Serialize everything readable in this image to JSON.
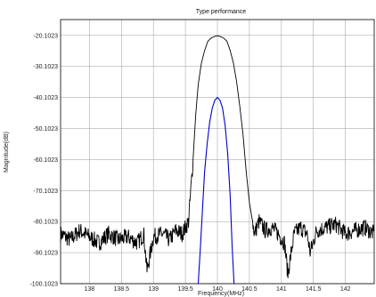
{
  "chart_data": {
    "type": "line",
    "title": "Type performance",
    "xlabel": "Frequency(MHz)",
    "ylabel": "Magnitude(dB)",
    "xlim": [
      137.55,
      142.45
    ],
    "ylim": [
      -100.1023,
      -15.0
    ],
    "x_ticks": [
      138,
      138.5,
      139,
      139.5,
      140,
      140.5,
      141,
      141.5,
      142
    ],
    "x_tick_labels": [
      "138",
      "138.5",
      "139",
      "139.5",
      "140",
      "140.5",
      "141",
      "141.5",
      "142"
    ],
    "y_ticks": [
      -100.1023,
      -90.1023,
      -80.1023,
      -70.1023,
      -60.1023,
      -50.1023,
      -40.1023,
      -30.1023,
      -20.1023
    ],
    "y_tick_labels": [
      "-100.1023",
      "-90.1023",
      "-80.1023",
      "-70.1023",
      "-60.1023",
      "-50.1023",
      "-40.1023",
      "-30.1023",
      "-20.1023"
    ],
    "grid": true,
    "series": [
      {
        "color": "#000000",
        "x": [
          137.55,
          137.7,
          137.85,
          138.0,
          138.15,
          138.3,
          138.45,
          138.6,
          138.75,
          138.85,
          138.9,
          139.0,
          139.15,
          139.25,
          139.35,
          139.45,
          139.55,
          139.62,
          139.66,
          139.7,
          139.75,
          139.8,
          139.85,
          139.9,
          139.95,
          140.0,
          140.05,
          140.1,
          140.15,
          140.2,
          140.25,
          140.3,
          140.35,
          140.4,
          140.45,
          140.5,
          140.58,
          140.65,
          140.75,
          140.85,
          140.95,
          141.05,
          141.1,
          141.2,
          141.3,
          141.4,
          141.45,
          141.55,
          141.7,
          141.85,
          142.0,
          142.15,
          142.3,
          142.45
        ],
        "y": [
          -84,
          -86,
          -83,
          -85,
          -87,
          -84,
          -86,
          -85,
          -87,
          -84,
          -96,
          -85,
          -84,
          -86,
          -83,
          -84,
          -80,
          -60,
          -46,
          -36,
          -29,
          -25,
          -22,
          -21,
          -20.5,
          -20.2,
          -20.5,
          -21,
          -22,
          -25,
          -29,
          -35,
          -43,
          -52,
          -64,
          -74,
          -84,
          -80,
          -83,
          -82,
          -84,
          -87,
          -97,
          -84,
          -82,
          -84,
          -90,
          -83,
          -82,
          -81,
          -84,
          -83,
          -82,
          -84
        ]
      },
      {
        "color": "#0000cc",
        "x": [
          139.7,
          139.73,
          139.77,
          139.8,
          139.84,
          139.88,
          139.92,
          139.96,
          140.0,
          140.04,
          140.08,
          140.12,
          140.16,
          140.2,
          140.23,
          140.26
        ],
        "y": [
          -100.1,
          -90,
          -75,
          -64,
          -55,
          -48,
          -43.5,
          -41,
          -40.1,
          -41,
          -43.5,
          -49,
          -58,
          -72,
          -88,
          -100.1
        ]
      }
    ]
  }
}
